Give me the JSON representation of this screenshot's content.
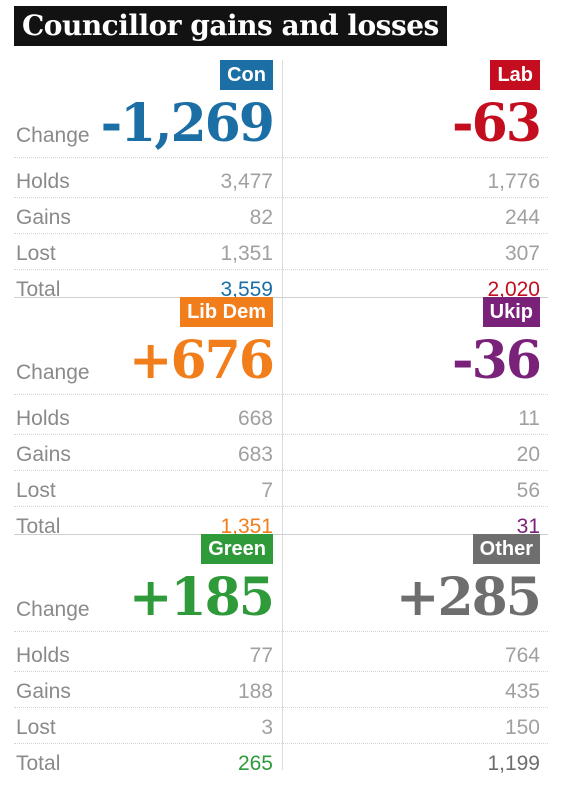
{
  "title": "Councillor gains and losses",
  "row_labels": {
    "change": "Change",
    "holds": "Holds",
    "gains": "Gains",
    "lost": "Lost",
    "total": "Total"
  },
  "parties": [
    {
      "name": "Con",
      "color": "#1c6fa5",
      "change": "-1,269",
      "holds": "3,477",
      "gains": "82",
      "lost": "1,351",
      "total": "3,559"
    },
    {
      "name": "Lab",
      "color": "#c40d1e",
      "change": "-63",
      "holds": "1,776",
      "gains": "244",
      "lost": "307",
      "total": "2,020"
    },
    {
      "name": "Lib Dem",
      "color": "#f27d1b",
      "change": "+676",
      "holds": "668",
      "gains": "683",
      "lost": "7",
      "total": "1,351"
    },
    {
      "name": "Ukip",
      "color": "#7a2179",
      "change": "-36",
      "holds": "11",
      "gains": "20",
      "lost": "56",
      "total": "31"
    },
    {
      "name": "Green",
      "color": "#2f9a3a",
      "change": "+185",
      "holds": "77",
      "gains": "188",
      "lost": "3",
      "total": "265"
    },
    {
      "name": "Other",
      "color": "#6e6e6e",
      "change": "+285",
      "holds": "764",
      "gains": "435",
      "lost": "150",
      "total": "1,199"
    }
  ]
}
